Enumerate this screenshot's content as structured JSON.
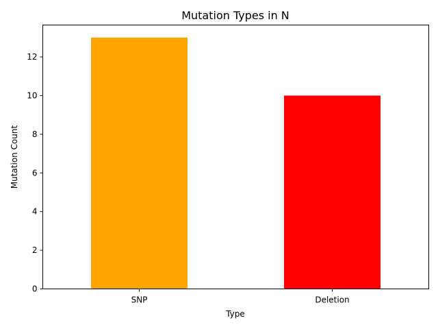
{
  "chart_data": {
    "type": "bar",
    "title": "Mutation Types in N",
    "xlabel": "Type",
    "ylabel": "Mutation Count",
    "categories": [
      "SNP",
      "Deletion"
    ],
    "values": [
      13,
      10
    ],
    "colors": [
      "#ffa500",
      "#ff0000"
    ],
    "ylim": [
      0,
      13.65
    ],
    "yticks": [
      0,
      2,
      4,
      6,
      8,
      10,
      12
    ],
    "grid": false,
    "legend": "none"
  }
}
